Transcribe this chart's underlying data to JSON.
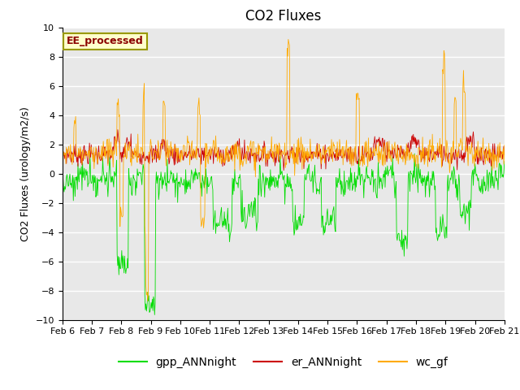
{
  "title": "CO2 Fluxes",
  "ylabel": "CO2 Fluxes (urology/m2/s)",
  "ylim": [
    -10,
    10
  ],
  "yticks": [
    -10,
    -8,
    -6,
    -4,
    -2,
    0,
    2,
    4,
    6,
    8,
    10
  ],
  "xtick_labels": [
    "Feb 6",
    "Feb 7",
    "Feb 8",
    "Feb 9",
    "Feb 10",
    "Feb 11",
    "Feb 12",
    "Feb 13",
    "Feb 14",
    "Feb 15",
    "Feb 16",
    "Feb 17",
    "Feb 18",
    "Feb 19",
    "Feb 20",
    "Feb 21"
  ],
  "annotation": "EE_processed",
  "colors": {
    "gpp": "#00dd00",
    "er": "#cc0000",
    "wc": "#ffaa00"
  },
  "legend_labels": [
    "gpp_ANNnight",
    "er_ANNnight",
    "wc_gf"
  ],
  "background_color": "#e8e8e8",
  "title_fontsize": 12,
  "axis_fontsize": 9,
  "tick_fontsize": 8,
  "legend_fontsize": 10,
  "n_points": 768,
  "seed": 7
}
